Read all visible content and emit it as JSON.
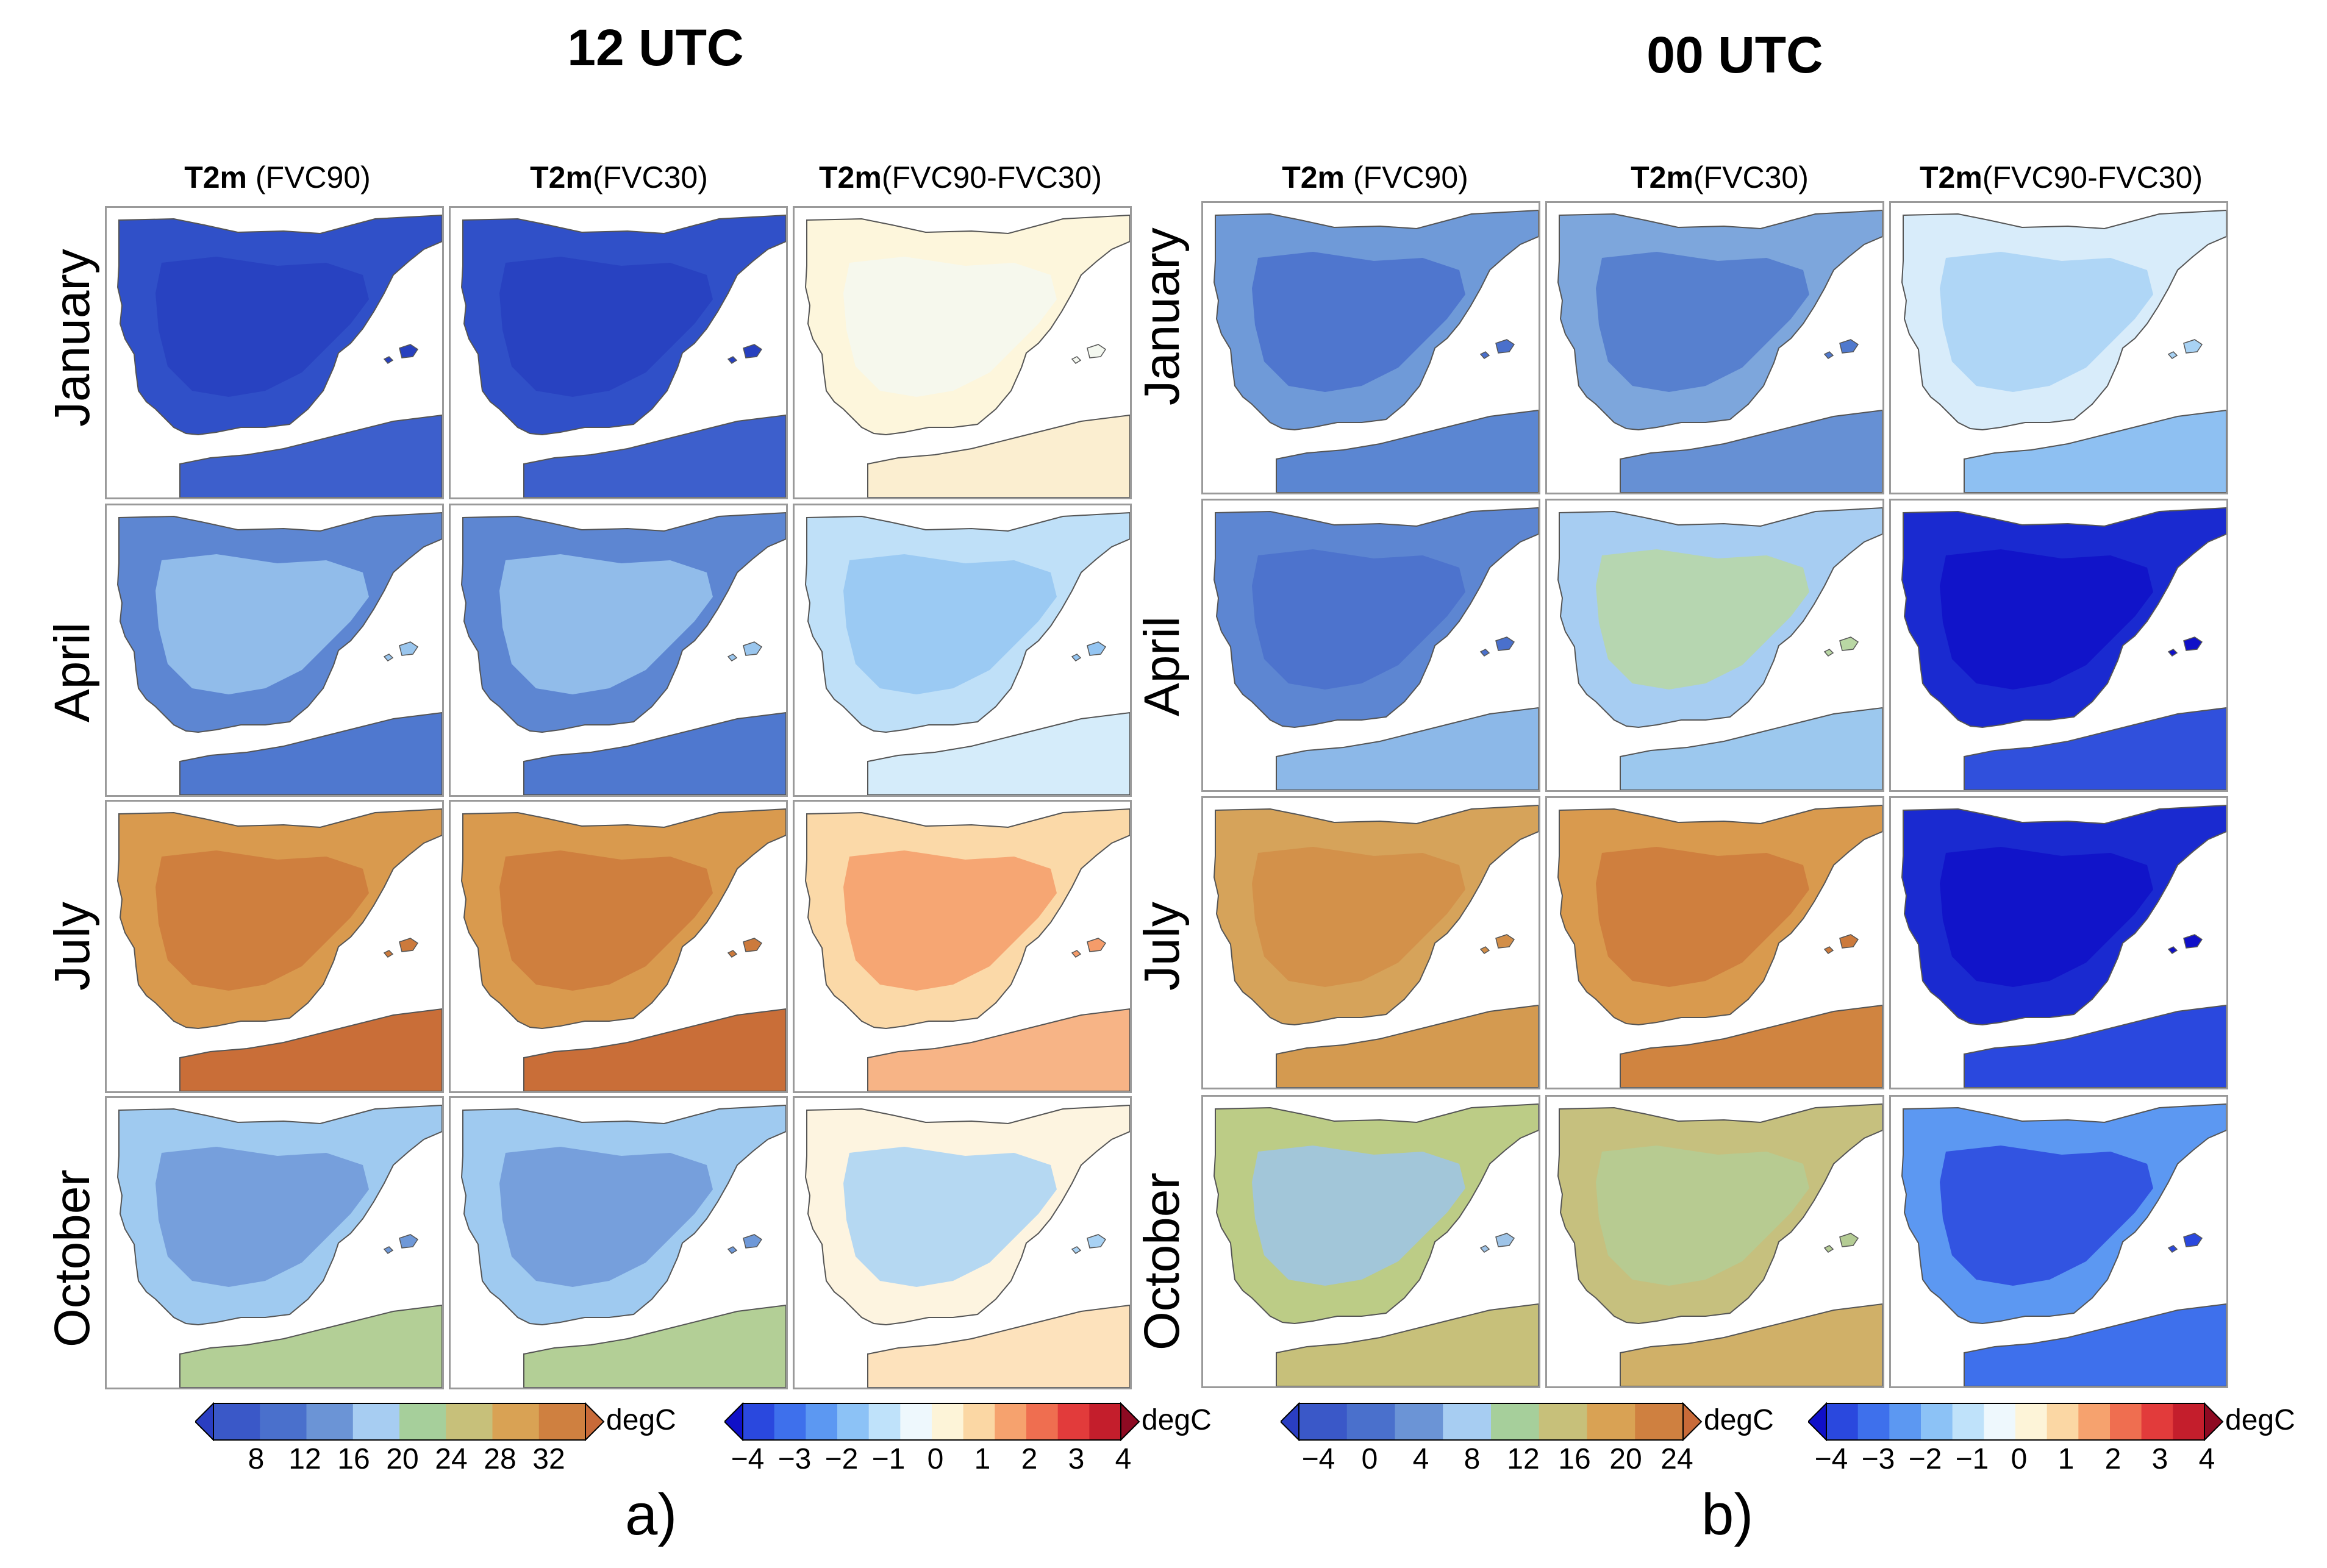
{
  "panels": [
    {
      "id": "a",
      "title": "12 UTC",
      "tag": "a)",
      "columns": [
        {
          "bold": "T2m",
          "rest": " (FVC90)"
        },
        {
          "bold": "T2m",
          "rest": "(FVC30)"
        },
        {
          "bold": "T2m",
          "rest": "(FVC90-FVC30)"
        }
      ],
      "rows": [
        "January",
        "April",
        "July",
        "October"
      ],
      "colorbars": [
        {
          "ticks": [
            "8",
            "12",
            "16",
            "20",
            "24",
            "28",
            "32"
          ],
          "unit": "degC",
          "colors": [
            "#2a3ec2",
            "#3a58c8",
            "#4a70cc",
            "#6b94d6",
            "#a7cdf2",
            "#a6cf9b",
            "#c7c07a",
            "#d9a254",
            "#cf8040",
            "#c86a38"
          ]
        },
        {
          "ticks": [
            "−4",
            "−3",
            "−2",
            "−1",
            "0",
            "1",
            "2",
            "3",
            "4"
          ],
          "unit": "degC",
          "colors": [
            "#1010c8",
            "#2a48de",
            "#3e70ec",
            "#5c98f2",
            "#8cc2f6",
            "#bfe2fa",
            "#eef8fd",
            "#fdf4d8",
            "#fbd7a4",
            "#f6a26e",
            "#ef6e50",
            "#e23b3b",
            "#c41e2c",
            "#8e0a22"
          ]
        }
      ]
    },
    {
      "id": "b",
      "title": "00 UTC",
      "tag": "b)",
      "columns": [
        {
          "bold": "T2m",
          "rest": " (FVC90)"
        },
        {
          "bold": "T2m",
          "rest": "(FVC30)"
        },
        {
          "bold": "T2m",
          "rest": "(FVC90-FVC30)"
        }
      ],
      "rows": [
        "January",
        "April",
        "July",
        "October"
      ],
      "colorbars": [
        {
          "ticks": [
            "−4",
            "0",
            "4",
            "8",
            "12",
            "16",
            "20",
            "24"
          ],
          "unit": "degC",
          "colors": [
            "#2a3ec2",
            "#3a58c8",
            "#4a70cc",
            "#6b94d6",
            "#a7cdf2",
            "#a6cf9b",
            "#c7c07a",
            "#d9a254",
            "#cf8040",
            "#c86a38"
          ]
        },
        {
          "ticks": [
            "−4",
            "−3",
            "−2",
            "−1",
            "0",
            "1",
            "2",
            "3",
            "4"
          ],
          "unit": "degC",
          "colors": [
            "#1010c8",
            "#2a48de",
            "#3e70ec",
            "#5c98f2",
            "#8cc2f6",
            "#bfe2fa",
            "#eef8fd",
            "#fdf4d8",
            "#fbd7a4",
            "#f6a26e",
            "#ef6e50",
            "#e23b3b",
            "#c41e2c",
            "#8e0a22"
          ]
        }
      ]
    }
  ],
  "maps": {
    "a": [
      [
        {
          "land": "#3050c8",
          "inner": "#2740bf",
          "sea": "#3d5fcc"
        },
        {
          "land": "#3050c8",
          "inner": "#2740bf",
          "sea": "#3d5fcc"
        },
        {
          "land": "#fdf6dc",
          "inner": "#f4f8f0",
          "sea": "#fbeed0"
        }
      ],
      [
        {
          "land": "#5d86d2",
          "inner": "#9ac6ee",
          "sea": "#4f78cf"
        },
        {
          "land": "#5d86d2",
          "inner": "#9ac6ee",
          "sea": "#4f78cf"
        },
        {
          "land": "#bfe0f8",
          "inner": "#94c5f2",
          "sea": "#d5ecfa"
        }
      ],
      [
        {
          "land": "#d99a4e",
          "inner": "#cc7a3c",
          "sea": "#c96e38"
        },
        {
          "land": "#d99a4e",
          "inner": "#cc7a3c",
          "sea": "#c96e38"
        },
        {
          "land": "#fbd9a8",
          "inner": "#f59c6a",
          "sea": "#f7b486"
        }
      ],
      [
        {
          "land": "#9fcaf0",
          "inner": "#6e98d8",
          "sea": "#b3cf96"
        },
        {
          "land": "#9fcaf0",
          "inner": "#6e98d8",
          "sea": "#b3cf96"
        },
        {
          "land": "#fdf4e0",
          "inner": "#a8d2f4",
          "sea": "#fde2bc"
        }
      ]
    ],
    "b": [
      [
        {
          "land": "#6f9ad8",
          "inner": "#4a70cc",
          "sea": "#5b86d2"
        },
        {
          "land": "#7da6dc",
          "inner": "#5079cd",
          "sea": "#6690d4"
        },
        {
          "land": "#d8ecfa",
          "inner": "#a8d2f4",
          "sea": "#8ec0f2"
        }
      ],
      [
        {
          "land": "#5d86d2",
          "inner": "#4a70cc",
          "sea": "#8cb8e8"
        },
        {
          "land": "#a7cdf2",
          "inner": "#b9d7a4",
          "sea": "#9cc8ee"
        },
        {
          "land": "#1a2ad0",
          "inner": "#1010c8",
          "sea": "#3050dc"
        }
      ],
      [
        {
          "land": "#d6a35a",
          "inner": "#d28e48",
          "sea": "#d49a50"
        },
        {
          "land": "#d99a4e",
          "inner": "#cc7a3c",
          "sea": "#d08440"
        },
        {
          "land": "#1a2ad0",
          "inner": "#1010c8",
          "sea": "#2a48de"
        }
      ],
      [
        {
          "land": "#bccc86",
          "inner": "#9ec4e8",
          "sea": "#c7c07a"
        },
        {
          "land": "#c6c07e",
          "inner": "#b4cc94",
          "sea": "#d0b068"
        },
        {
          "land": "#5c98f2",
          "inner": "#2a48de",
          "sea": "#3e70ec"
        }
      ]
    ]
  }
}
